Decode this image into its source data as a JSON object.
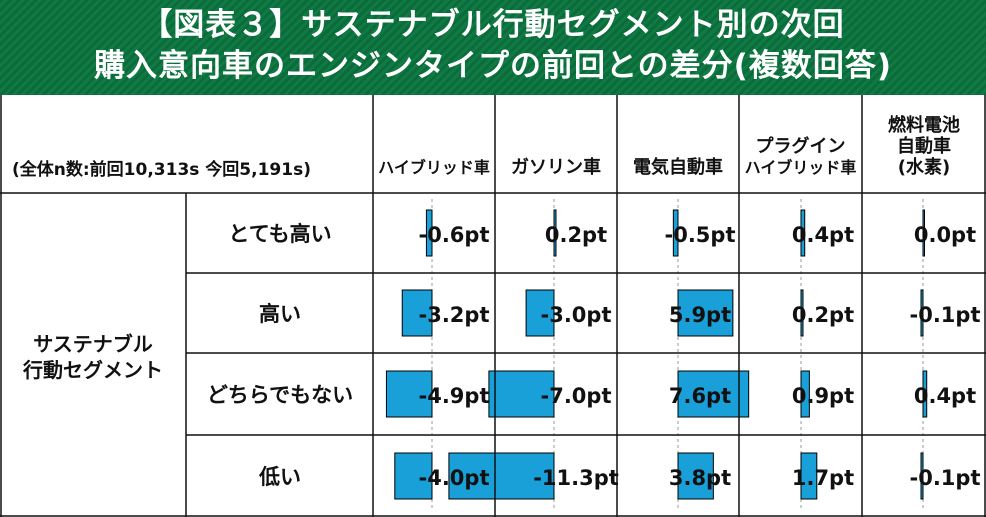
{
  "title": {
    "line1": "【図表３】サステナブル行動セグメント別の次回",
    "line2": "購入意向車のエンジンタイプの前回との差分(複数回答)"
  },
  "chart_data": {
    "type": "table",
    "note": "(全体n数:前回10,313s 今回5,191s)",
    "row_group_label": [
      "サステナブル",
      "行動セグメント"
    ],
    "columns": [
      {
        "name": "ハイブリッド車",
        "lines": [
          "ハイブリッド車"
        ]
      },
      {
        "name": "ガソリン車",
        "lines": [
          "ガソリン車"
        ]
      },
      {
        "name": "電気自動車",
        "lines": [
          "電気自動車"
        ]
      },
      {
        "name": "プラグインハイブリッド車",
        "lines": [
          "プラグイン",
          "ハイブリッド車"
        ]
      },
      {
        "name": "燃料電池自動車(水素)",
        "lines": [
          "燃料電池",
          "自動車",
          "(水素)"
        ]
      }
    ],
    "rows": [
      "とても高い",
      "高い",
      "どちらでもない",
      "低い"
    ],
    "values": [
      [
        -0.6,
        0.2,
        -0.5,
        0.4,
        0.0
      ],
      [
        -3.2,
        -3.0,
        5.9,
        0.2,
        -0.1
      ],
      [
        -4.9,
        -7.0,
        7.6,
        0.9,
        0.4
      ],
      [
        -4.0,
        -11.3,
        3.8,
        1.7,
        -0.1
      ]
    ],
    "labels": [
      [
        "-0.6pt",
        "0.2pt",
        "-0.5pt",
        "0.4pt",
        "0.0pt"
      ],
      [
        "-3.2pt",
        "-3.0pt",
        "5.9pt",
        "0.2pt",
        "-0.1pt"
      ],
      [
        "-4.9pt",
        "-7.0pt",
        "7.6pt",
        "0.9pt",
        "0.4pt"
      ],
      [
        "-4.0pt",
        "-11.3pt",
        "3.8pt",
        "1.7pt",
        "-0.1pt"
      ]
    ],
    "unit": "pt",
    "bar_color": "#1aa0d8"
  }
}
